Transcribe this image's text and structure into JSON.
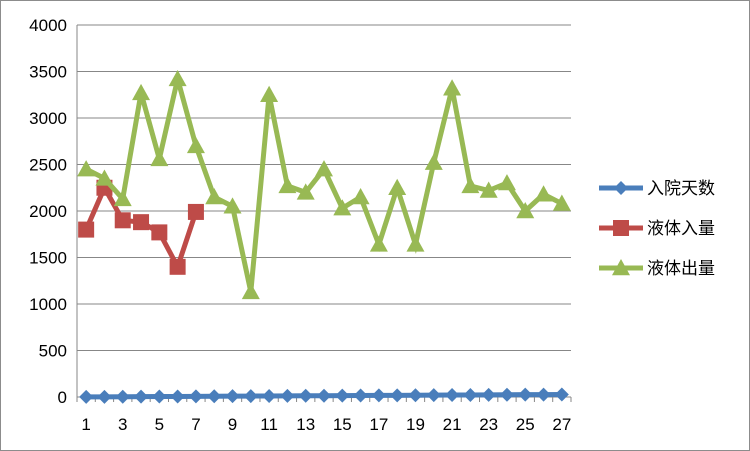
{
  "chart_data": {
    "type": "line",
    "title": "",
    "xlabel": "",
    "ylabel": "",
    "categories": [
      1,
      2,
      3,
      4,
      5,
      6,
      7,
      8,
      9,
      10,
      11,
      12,
      13,
      14,
      15,
      16,
      17,
      18,
      19,
      20,
      21,
      22,
      23,
      24,
      25,
      26,
      27
    ],
    "x_tick_labels": [
      "1",
      "3",
      "5",
      "7",
      "9",
      "11",
      "13",
      "15",
      "17",
      "19",
      "21",
      "23",
      "25",
      "27"
    ],
    "y_ticks": [
      0,
      500,
      1000,
      1500,
      2000,
      2500,
      3000,
      3500,
      4000
    ],
    "ylim": [
      0,
      4000
    ],
    "grid": "horizontal",
    "legend_position": "right",
    "series": [
      {
        "name": "入院天数",
        "color": "#4a7ebb",
        "marker": "diamond",
        "values": [
          1,
          2,
          3,
          4,
          5,
          6,
          7,
          8,
          9,
          10,
          11,
          12,
          13,
          14,
          15,
          16,
          17,
          18,
          19,
          20,
          21,
          22,
          23,
          24,
          25,
          26,
          27
        ]
      },
      {
        "name": "液体入量",
        "color": "#be4b48",
        "marker": "square",
        "values": [
          1800,
          2250,
          1900,
          1880,
          1770,
          1400,
          1990,
          null,
          null,
          null,
          null,
          null,
          null,
          null,
          null,
          null,
          null,
          null,
          null,
          null,
          null,
          null,
          null,
          null,
          null,
          null,
          null
        ]
      },
      {
        "name": "液体出量",
        "color": "#98b954",
        "marker": "triangle",
        "values": [
          2450,
          2350,
          2130,
          3270,
          2560,
          3420,
          2700,
          2150,
          2050,
          1130,
          3250,
          2270,
          2200,
          2450,
          2030,
          2150,
          1640,
          2250,
          1640,
          2520,
          3320,
          2270,
          2220,
          2300,
          2000,
          2180,
          2080
        ]
      }
    ]
  }
}
